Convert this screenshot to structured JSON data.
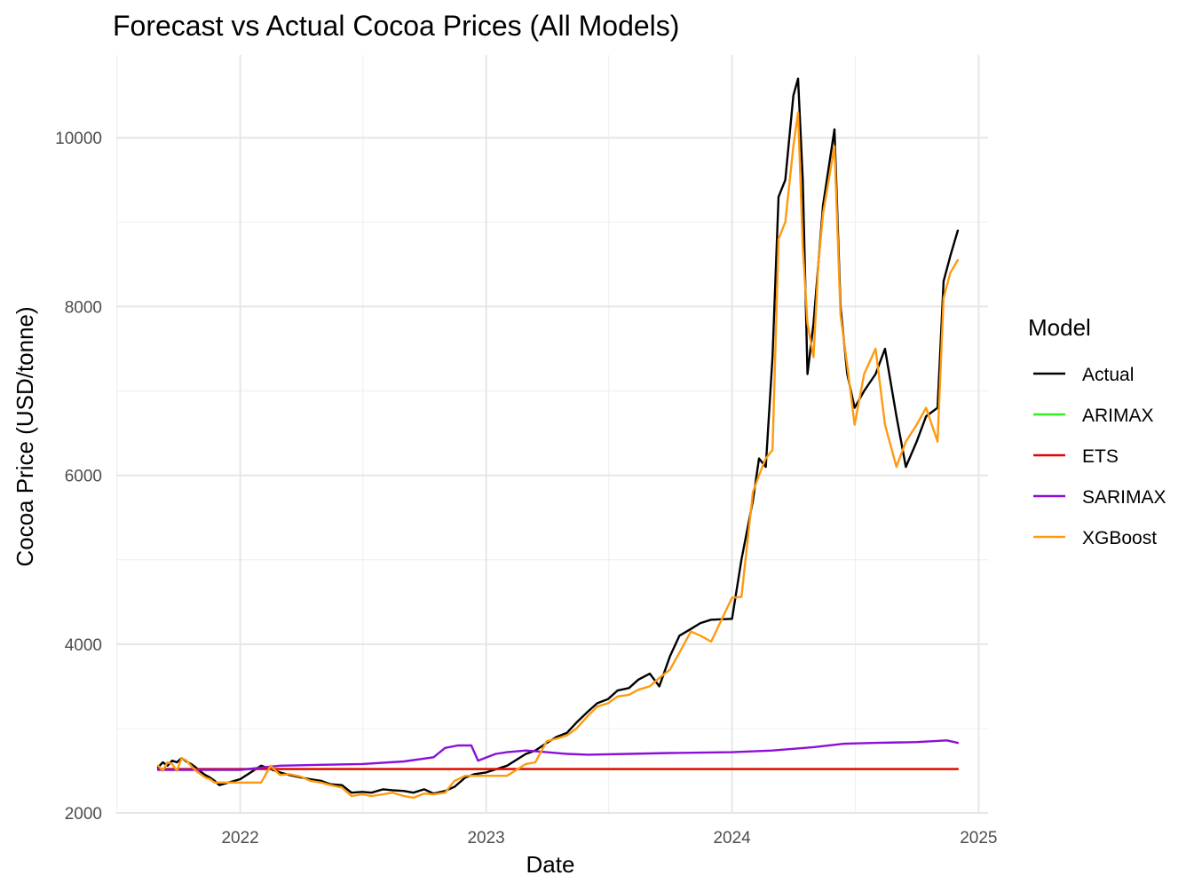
{
  "chart_data": {
    "type": "line",
    "title": "Forecast vs Actual Cocoa Prices (All Models)",
    "xlabel": "Date",
    "ylabel": "Cocoa Price (USD/tonne)",
    "xlim": [
      "2021-07-01",
      "2025-01-15"
    ],
    "ylim": [
      1990,
      10980
    ],
    "x_ticks": [
      {
        "date": "2022-01-01",
        "label": "2022"
      },
      {
        "date": "2023-01-01",
        "label": "2023"
      },
      {
        "date": "2024-01-01",
        "label": "2024"
      },
      {
        "date": "2025-01-01",
        "label": "2025"
      }
    ],
    "y_ticks": [
      2000,
      4000,
      6000,
      8000,
      10000
    ],
    "grid": true,
    "legend": {
      "title": "Model",
      "placement": "right",
      "entries": [
        {
          "name": "Actual",
          "color": "#000000"
        },
        {
          "name": "ARIMAX",
          "color": "#33ee22"
        },
        {
          "name": "ETS",
          "color": "#ee0000"
        },
        {
          "name": "SARIMAX",
          "color": "#8a10d8"
        },
        {
          "name": "XGBoost",
          "color": "#ff9a10"
        }
      ]
    },
    "series": [
      {
        "name": "Actual",
        "color": "#000000",
        "x": [
          "2021-09-01",
          "2021-09-08",
          "2021-09-15",
          "2021-09-22",
          "2021-09-29",
          "2021-10-06",
          "2021-10-13",
          "2021-10-20",
          "2021-10-27",
          "2021-11-03",
          "2021-11-10",
          "2021-11-17",
          "2021-11-24",
          "2021-12-01",
          "2022-01-01",
          "2022-02-01",
          "2022-02-15",
          "2022-03-01",
          "2022-03-15",
          "2022-04-01",
          "2022-04-15",
          "2022-05-01",
          "2022-05-15",
          "2022-06-01",
          "2022-06-15",
          "2022-07-01",
          "2022-07-15",
          "2022-08-01",
          "2022-08-15",
          "2022-09-01",
          "2022-09-15",
          "2022-10-01",
          "2022-10-15",
          "2022-11-01",
          "2022-11-15",
          "2022-12-01",
          "2022-12-15",
          "2023-01-01",
          "2023-02-01",
          "2023-03-01",
          "2023-03-15",
          "2023-04-01",
          "2023-04-15",
          "2023-05-01",
          "2023-05-15",
          "2023-06-01",
          "2023-06-15",
          "2023-07-01",
          "2023-07-15",
          "2023-08-01",
          "2023-08-15",
          "2023-09-01",
          "2023-09-15",
          "2023-10-01",
          "2023-10-15",
          "2023-11-01",
          "2023-11-15",
          "2023-12-01",
          "2024-01-01",
          "2024-01-15",
          "2024-02-01",
          "2024-02-10",
          "2024-02-20",
          "2024-03-01",
          "2024-03-10",
          "2024-03-20",
          "2024-04-01",
          "2024-04-08",
          "2024-04-15",
          "2024-04-22",
          "2024-05-01",
          "2024-05-08",
          "2024-05-15",
          "2024-06-01",
          "2024-06-10",
          "2024-06-20",
          "2024-07-01",
          "2024-07-15",
          "2024-08-01",
          "2024-08-15",
          "2024-09-01",
          "2024-09-15",
          "2024-10-01",
          "2024-10-15",
          "2024-11-01",
          "2024-11-10",
          "2024-11-20",
          "2024-12-01"
        ],
        "values": [
          2540,
          2600,
          2560,
          2620,
          2600,
          2650,
          2610,
          2580,
          2540,
          2490,
          2450,
          2420,
          2380,
          2330,
          2400,
          2560,
          2520,
          2480,
          2450,
          2420,
          2400,
          2380,
          2340,
          2330,
          2240,
          2250,
          2240,
          2280,
          2270,
          2260,
          2240,
          2280,
          2230,
          2260,
          2310,
          2420,
          2460,
          2480,
          2560,
          2700,
          2740,
          2830,
          2900,
          2950,
          3070,
          3200,
          3300,
          3350,
          3450,
          3480,
          3580,
          3650,
          3500,
          3860,
          4100,
          4180,
          4250,
          4290,
          4300,
          5000,
          5700,
          6200,
          6100,
          7400,
          9300,
          9500,
          10500,
          10700,
          9500,
          7200,
          7800,
          8500,
          9200,
          10100,
          8000,
          7200,
          6800,
          7000,
          7200,
          7500,
          6700,
          6100,
          6400,
          6700,
          6800,
          8300,
          8600,
          8900
        ]
      },
      {
        "name": "ARIMAX",
        "color": "#33ee22",
        "x": [
          "2021-09-01",
          "2024-12-01"
        ],
        "values": [
          2520,
          2520
        ]
      },
      {
        "name": "ETS",
        "color": "#ee0000",
        "x": [
          "2021-09-01",
          "2024-12-01"
        ],
        "values": [
          2520,
          2520
        ]
      },
      {
        "name": "SARIMAX",
        "color": "#8a10d8",
        "x": [
          "2021-09-01",
          "2022-01-01",
          "2022-03-01",
          "2022-05-01",
          "2022-07-01",
          "2022-09-01",
          "2022-10-15",
          "2022-11-01",
          "2022-11-20",
          "2022-12-10",
          "2022-12-20",
          "2023-01-15",
          "2023-02-01",
          "2023-03-01",
          "2023-04-01",
          "2023-05-01",
          "2023-06-01",
          "2023-08-01",
          "2023-10-01",
          "2024-01-01",
          "2024-03-01",
          "2024-05-01",
          "2024-06-15",
          "2024-08-01",
          "2024-10-01",
          "2024-11-15",
          "2024-12-01"
        ],
        "values": [
          2510,
          2510,
          2560,
          2570,
          2580,
          2610,
          2660,
          2770,
          2800,
          2800,
          2620,
          2700,
          2720,
          2740,
          2720,
          2700,
          2690,
          2700,
          2710,
          2720,
          2740,
          2780,
          2820,
          2830,
          2840,
          2860,
          2830
        ]
      },
      {
        "name": "XGBoost",
        "color": "#ff9a10",
        "x": [
          "2021-09-01",
          "2021-09-08",
          "2021-09-15",
          "2021-09-22",
          "2021-09-29",
          "2021-10-06",
          "2021-10-13",
          "2021-10-20",
          "2021-10-27",
          "2021-11-03",
          "2021-11-10",
          "2021-11-17",
          "2021-11-24",
          "2021-12-01",
          "2022-02-01",
          "2022-02-15",
          "2022-03-01",
          "2022-03-15",
          "2022-04-01",
          "2022-04-15",
          "2022-05-01",
          "2022-05-15",
          "2022-06-01",
          "2022-06-15",
          "2022-07-01",
          "2022-07-15",
          "2022-08-01",
          "2022-08-15",
          "2022-09-01",
          "2022-09-15",
          "2022-10-01",
          "2022-10-15",
          "2022-11-01",
          "2022-11-15",
          "2022-12-01",
          "2023-02-01",
          "2023-03-01",
          "2023-03-15",
          "2023-04-01",
          "2023-04-15",
          "2023-05-01",
          "2023-05-15",
          "2023-06-01",
          "2023-06-15",
          "2023-07-01",
          "2023-07-15",
          "2023-08-01",
          "2023-08-15",
          "2023-09-01",
          "2023-09-15",
          "2023-10-01",
          "2023-10-15",
          "2023-11-01",
          "2023-11-15",
          "2023-12-01",
          "2024-01-01",
          "2024-01-15",
          "2024-02-01",
          "2024-02-10",
          "2024-02-20",
          "2024-03-01",
          "2024-03-10",
          "2024-03-20",
          "2024-04-01",
          "2024-04-08",
          "2024-04-15",
          "2024-04-22",
          "2024-05-01",
          "2024-05-08",
          "2024-05-15",
          "2024-06-01",
          "2024-06-10",
          "2024-06-20",
          "2024-07-01",
          "2024-07-15",
          "2024-08-01",
          "2024-08-15",
          "2024-09-01",
          "2024-09-15",
          "2024-10-01",
          "2024-10-15",
          "2024-11-01",
          "2024-11-10",
          "2024-11-20",
          "2024-12-01"
        ],
        "values": [
          2560,
          2500,
          2600,
          2580,
          2500,
          2650,
          2620,
          2560,
          2500,
          2460,
          2420,
          2400,
          2360,
          2360,
          2360,
          2560,
          2450,
          2460,
          2430,
          2380,
          2360,
          2330,
          2300,
          2200,
          2220,
          2200,
          2220,
          2240,
          2200,
          2180,
          2230,
          2220,
          2240,
          2380,
          2440,
          2440,
          2580,
          2600,
          2850,
          2880,
          2920,
          3000,
          3150,
          3260,
          3300,
          3380,
          3400,
          3460,
          3500,
          3600,
          3700,
          3900,
          4150,
          4100,
          4030,
          4550,
          4560,
          5800,
          6000,
          6200,
          6300,
          8800,
          9000,
          9900,
          10300,
          8700,
          7800,
          7400,
          8500,
          9100,
          9900,
          7900,
          7300,
          6600,
          7200,
          7500,
          6600,
          6100,
          6400,
          6600,
          6800,
          6400,
          8100,
          8400,
          8550
        ]
      }
    ]
  }
}
